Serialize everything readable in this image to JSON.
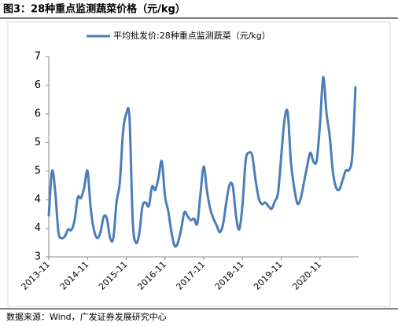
{
  "chart_data": {
    "type": "line",
    "title": "图3：28种重点监测蔬菜价格（元/kg）",
    "source": "数据来源：Wind，广发证券发展研究中心",
    "categories": [
      "2013-11",
      null,
      null,
      null,
      null,
      null,
      null,
      null,
      null,
      null,
      null,
      null,
      "2014-11",
      null,
      null,
      null,
      null,
      null,
      null,
      null,
      null,
      null,
      null,
      null,
      "2015-11",
      null,
      null,
      null,
      null,
      null,
      null,
      null,
      null,
      null,
      null,
      null,
      "2016-11",
      null,
      null,
      null,
      null,
      null,
      null,
      null,
      null,
      null,
      null,
      null,
      "2017-11",
      null,
      null,
      null,
      null,
      null,
      null,
      null,
      null,
      null,
      null,
      null,
      "2018-11",
      null,
      null,
      null,
      null,
      null,
      null,
      null,
      null,
      null,
      null,
      null,
      "2019-11",
      null,
      null,
      null,
      null,
      null,
      null,
      null,
      null,
      null,
      null,
      null,
      "2020-11",
      null,
      null,
      null,
      null,
      null,
      null,
      null,
      null,
      null,
      null,
      null
    ],
    "series": [
      {
        "name": "平均批发价:28种重点监测蔬菜（元/kg）",
        "color": "#4a7ebb",
        "values": [
          3.71,
          4.5,
          4.14,
          3.43,
          3.33,
          3.36,
          3.48,
          3.47,
          3.64,
          4.04,
          4.03,
          4.22,
          4.5,
          3.84,
          3.47,
          3.33,
          3.43,
          3.7,
          3.67,
          3.33,
          3.33,
          3.96,
          4.3,
          5.18,
          5.5,
          5.43,
          3.63,
          3.25,
          3.4,
          3.88,
          3.95,
          3.89,
          4.23,
          4.17,
          4.39,
          4.67,
          4.06,
          3.8,
          3.43,
          3.19,
          3.25,
          3.48,
          3.78,
          3.71,
          3.64,
          3.67,
          3.58,
          4.11,
          4.58,
          4.15,
          3.84,
          3.67,
          3.55,
          3.43,
          3.58,
          3.96,
          4.26,
          4.23,
          3.71,
          3.48,
          3.91,
          4.69,
          4.82,
          4.77,
          4.36,
          4.03,
          3.92,
          3.95,
          3.89,
          3.84,
          3.97,
          4.12,
          4.76,
          5.39,
          5.52,
          4.65,
          4.21,
          3.93,
          4.02,
          4.29,
          4.58,
          4.82,
          4.66,
          4.69,
          5.32,
          6.14,
          5.52,
          5.11,
          4.48,
          4.21,
          4.18,
          4.34,
          4.51,
          4.52,
          4.77,
          5.98
        ]
      }
    ],
    "ylim": [
      3,
      6.5
    ],
    "yticks": [
      3,
      {
        "value": 3.5,
        "label": "4"
      },
      4,
      {
        "value": 4.5,
        "label": "5"
      },
      5,
      {
        "value": 5.5,
        "label": "6"
      },
      6,
      {
        "value": 6.5,
        "label": "7"
      }
    ]
  }
}
